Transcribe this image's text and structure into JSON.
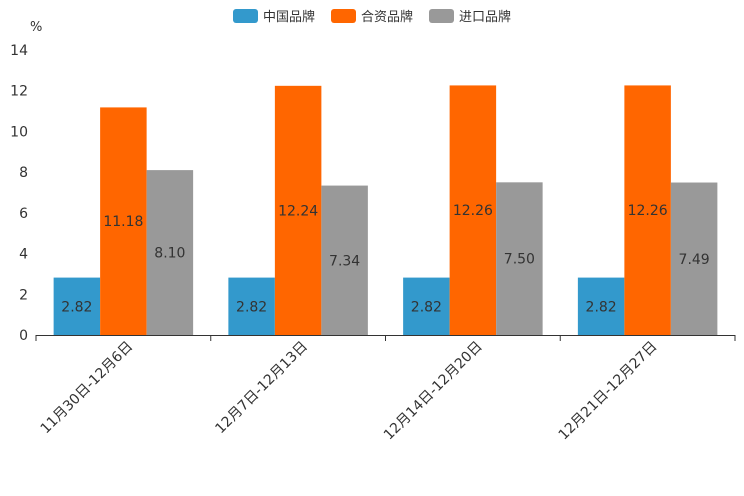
{
  "chart_data": {
    "type": "bar",
    "title": "",
    "unit": "%",
    "xlabel": "",
    "ylabel": "%",
    "ylim": [
      0,
      14
    ],
    "yticks": [
      0,
      2,
      4,
      6,
      8,
      10,
      12,
      14
    ],
    "categories": [
      "11月30日-12月6日",
      "12月7日-12月13日",
      "12月14日-12月20日",
      "12月21日-12月27日"
    ],
    "series": [
      {
        "name": "中国品牌",
        "color": "#3399cc",
        "values": [
          2.82,
          2.82,
          2.82,
          2.82
        ],
        "labels": [
          "2.82",
          "2.82",
          "2.82",
          "2.82"
        ]
      },
      {
        "name": "合资品牌",
        "color": "#ff6600",
        "values": [
          11.18,
          12.24,
          12.26,
          12.26
        ],
        "labels": [
          "11.18",
          "12.24",
          "12.26",
          "12.26"
        ]
      },
      {
        "name": "进口品牌",
        "color": "#999999",
        "values": [
          8.1,
          7.34,
          7.5,
          7.49
        ],
        "labels": [
          "8.10",
          "7.34",
          "7.50",
          "7.49"
        ]
      }
    ],
    "legend_position": "top-center",
    "grid": false
  }
}
